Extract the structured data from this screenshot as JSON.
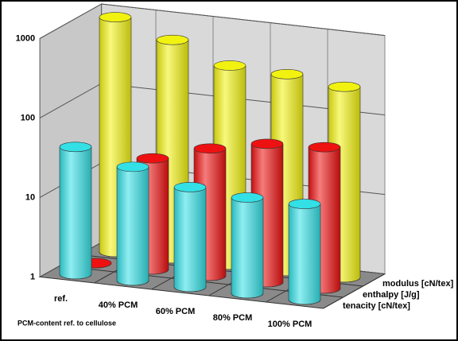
{
  "chart_data": {
    "type": "bar3d",
    "annotation": "PCM-content ref. to cellulose",
    "categories": [
      "ref.",
      "40% PCM",
      "60% PCM",
      "80% PCM",
      "100% PCM"
    ],
    "series": [
      {
        "name": "tenacity [cN/tex]",
        "color": "#33e0e6",
        "values": [
          40,
          27,
          18,
          16,
          16
        ]
      },
      {
        "name": "enthalpy [J/g]",
        "color": "#ee1111",
        "values": [
          1,
          25,
          40,
          55,
          60
        ]
      },
      {
        "name": "modulus [cN/tex]",
        "color": "#f2f211",
        "values": [
          900,
          560,
          320,
          300,
          250
        ]
      }
    ],
    "ylim": [
      1,
      1000
    ],
    "yticks": [
      1,
      10,
      100,
      1000
    ],
    "log_scale": true,
    "grid": true
  }
}
